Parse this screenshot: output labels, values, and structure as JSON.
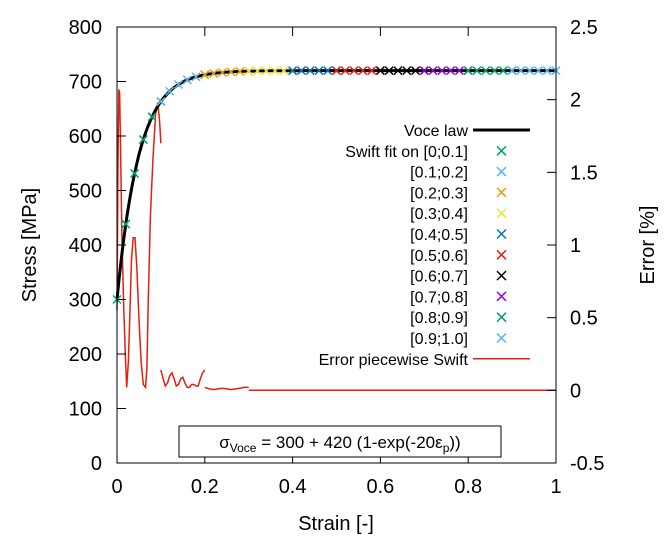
{
  "chart_data": {
    "type": "line",
    "xlabel": "Strain [-]",
    "ylabel": "Stress [MPa]",
    "y2label": "Error [%]",
    "xlim": [
      0,
      1
    ],
    "ylim": [
      0,
      800
    ],
    "y2lim": [
      -0.5,
      2.5
    ],
    "x_ticks": [
      "0",
      "0.2",
      "0.4",
      "0.6",
      "0.8",
      "1"
    ],
    "y_ticks": [
      "0",
      "100",
      "200",
      "300",
      "400",
      "500",
      "600",
      "700",
      "800"
    ],
    "y2_ticks": [
      "-0.5",
      "0",
      "0.5",
      "1",
      "1.5",
      "2",
      "2.5"
    ],
    "grid": false,
    "legend_position": "right",
    "annotation": {
      "sigma": "σ",
      "sub1": "Voce",
      "mid": " = 300 + 420 (1-exp(-20ε",
      "sub2": "p",
      "end": "))"
    },
    "voce_law": {
      "name": "Voce law",
      "color": "#000000",
      "equation": {
        "base": 300,
        "amplitude": 420,
        "rate": 20
      }
    },
    "swift_fits": [
      {
        "name": "Swift fit on [0;0.1]",
        "range": [
          0,
          0.1
        ],
        "color": "#009e73"
      },
      {
        "name": "[0.1;0.2]",
        "range": [
          0.1,
          0.2
        ],
        "color": "#56b4e9"
      },
      {
        "name": "[0.2;0.3]",
        "range": [
          0.2,
          0.3
        ],
        "color": "#e69f00"
      },
      {
        "name": "[0.3;0.4]",
        "range": [
          0.3,
          0.4
        ],
        "color": "#f0e442"
      },
      {
        "name": "[0.4;0.5]",
        "range": [
          0.4,
          0.5
        ],
        "color": "#0072b2"
      },
      {
        "name": "[0.5;0.6]",
        "range": [
          0.5,
          0.6
        ],
        "color": "#e51e10"
      },
      {
        "name": "[0.6;0.7]",
        "range": [
          0.6,
          0.7
        ],
        "color": "#000000"
      },
      {
        "name": "[0.7;0.8]",
        "range": [
          0.7,
          0.8
        ],
        "color": "#9400d3"
      },
      {
        "name": "[0.8;0.9]",
        "range": [
          0.8,
          0.9
        ],
        "color": "#009e73"
      },
      {
        "name": "[0.9;1.0]",
        "range": [
          0.9,
          1.0
        ],
        "color": "#56b4e9"
      }
    ],
    "error_series": {
      "name": "Error piecewise Swift",
      "color": "#e51e10",
      "segments": [
        {
          "x": [
            0.0,
            0.002,
            0.004,
            0.006,
            0.008,
            0.011,
            0.015,
            0.019,
            0.022,
            0.026,
            0.03,
            0.033,
            0.037,
            0.041,
            0.045,
            0.05,
            0.055,
            0.06,
            0.065,
            0.068,
            0.071,
            0.076,
            0.082,
            0.088,
            0.093,
            0.097,
            0.1
          ],
          "y": [
            0.55,
            1.5,
            2.07,
            2.05,
            1.7,
            1.1,
            0.6,
            0.25,
            0.02,
            0.2,
            0.6,
            0.9,
            1.05,
            1.05,
            0.85,
            0.5,
            0.2,
            0.04,
            0.02,
            0.15,
            0.6,
            1.2,
            1.6,
            1.9,
            1.98,
            1.85,
            1.7
          ]
        },
        {
          "x": [
            0.1,
            0.105,
            0.11,
            0.115,
            0.12,
            0.125,
            0.13,
            0.135,
            0.14,
            0.145,
            0.15,
            0.155,
            0.16,
            0.165,
            0.17,
            0.175,
            0.18,
            0.185,
            0.19,
            0.195,
            0.2
          ],
          "y": [
            0.14,
            0.08,
            0.03,
            0.05,
            0.1,
            0.12,
            0.08,
            0.03,
            0.04,
            0.08,
            0.09,
            0.05,
            0.02,
            0.02,
            0.04,
            0.04,
            0.03,
            0.03,
            0.08,
            0.12,
            0.14
          ]
        },
        {
          "x": [
            0.2,
            0.21,
            0.22,
            0.23,
            0.24,
            0.25,
            0.26,
            0.27,
            0.28,
            0.29,
            0.3
          ],
          "y": [
            0.02,
            0.01,
            0.005,
            0.01,
            0.015,
            0.01,
            0.005,
            0.01,
            0.015,
            0.02,
            0.02
          ]
        },
        {
          "x": [
            0.3,
            0.4,
            0.5,
            0.6,
            0.7,
            0.8,
            0.9,
            1.0
          ],
          "y": [
            0.0,
            0.0,
            0.0,
            0.0,
            0.0,
            0.0,
            0.0,
            0.0
          ]
        }
      ]
    }
  }
}
